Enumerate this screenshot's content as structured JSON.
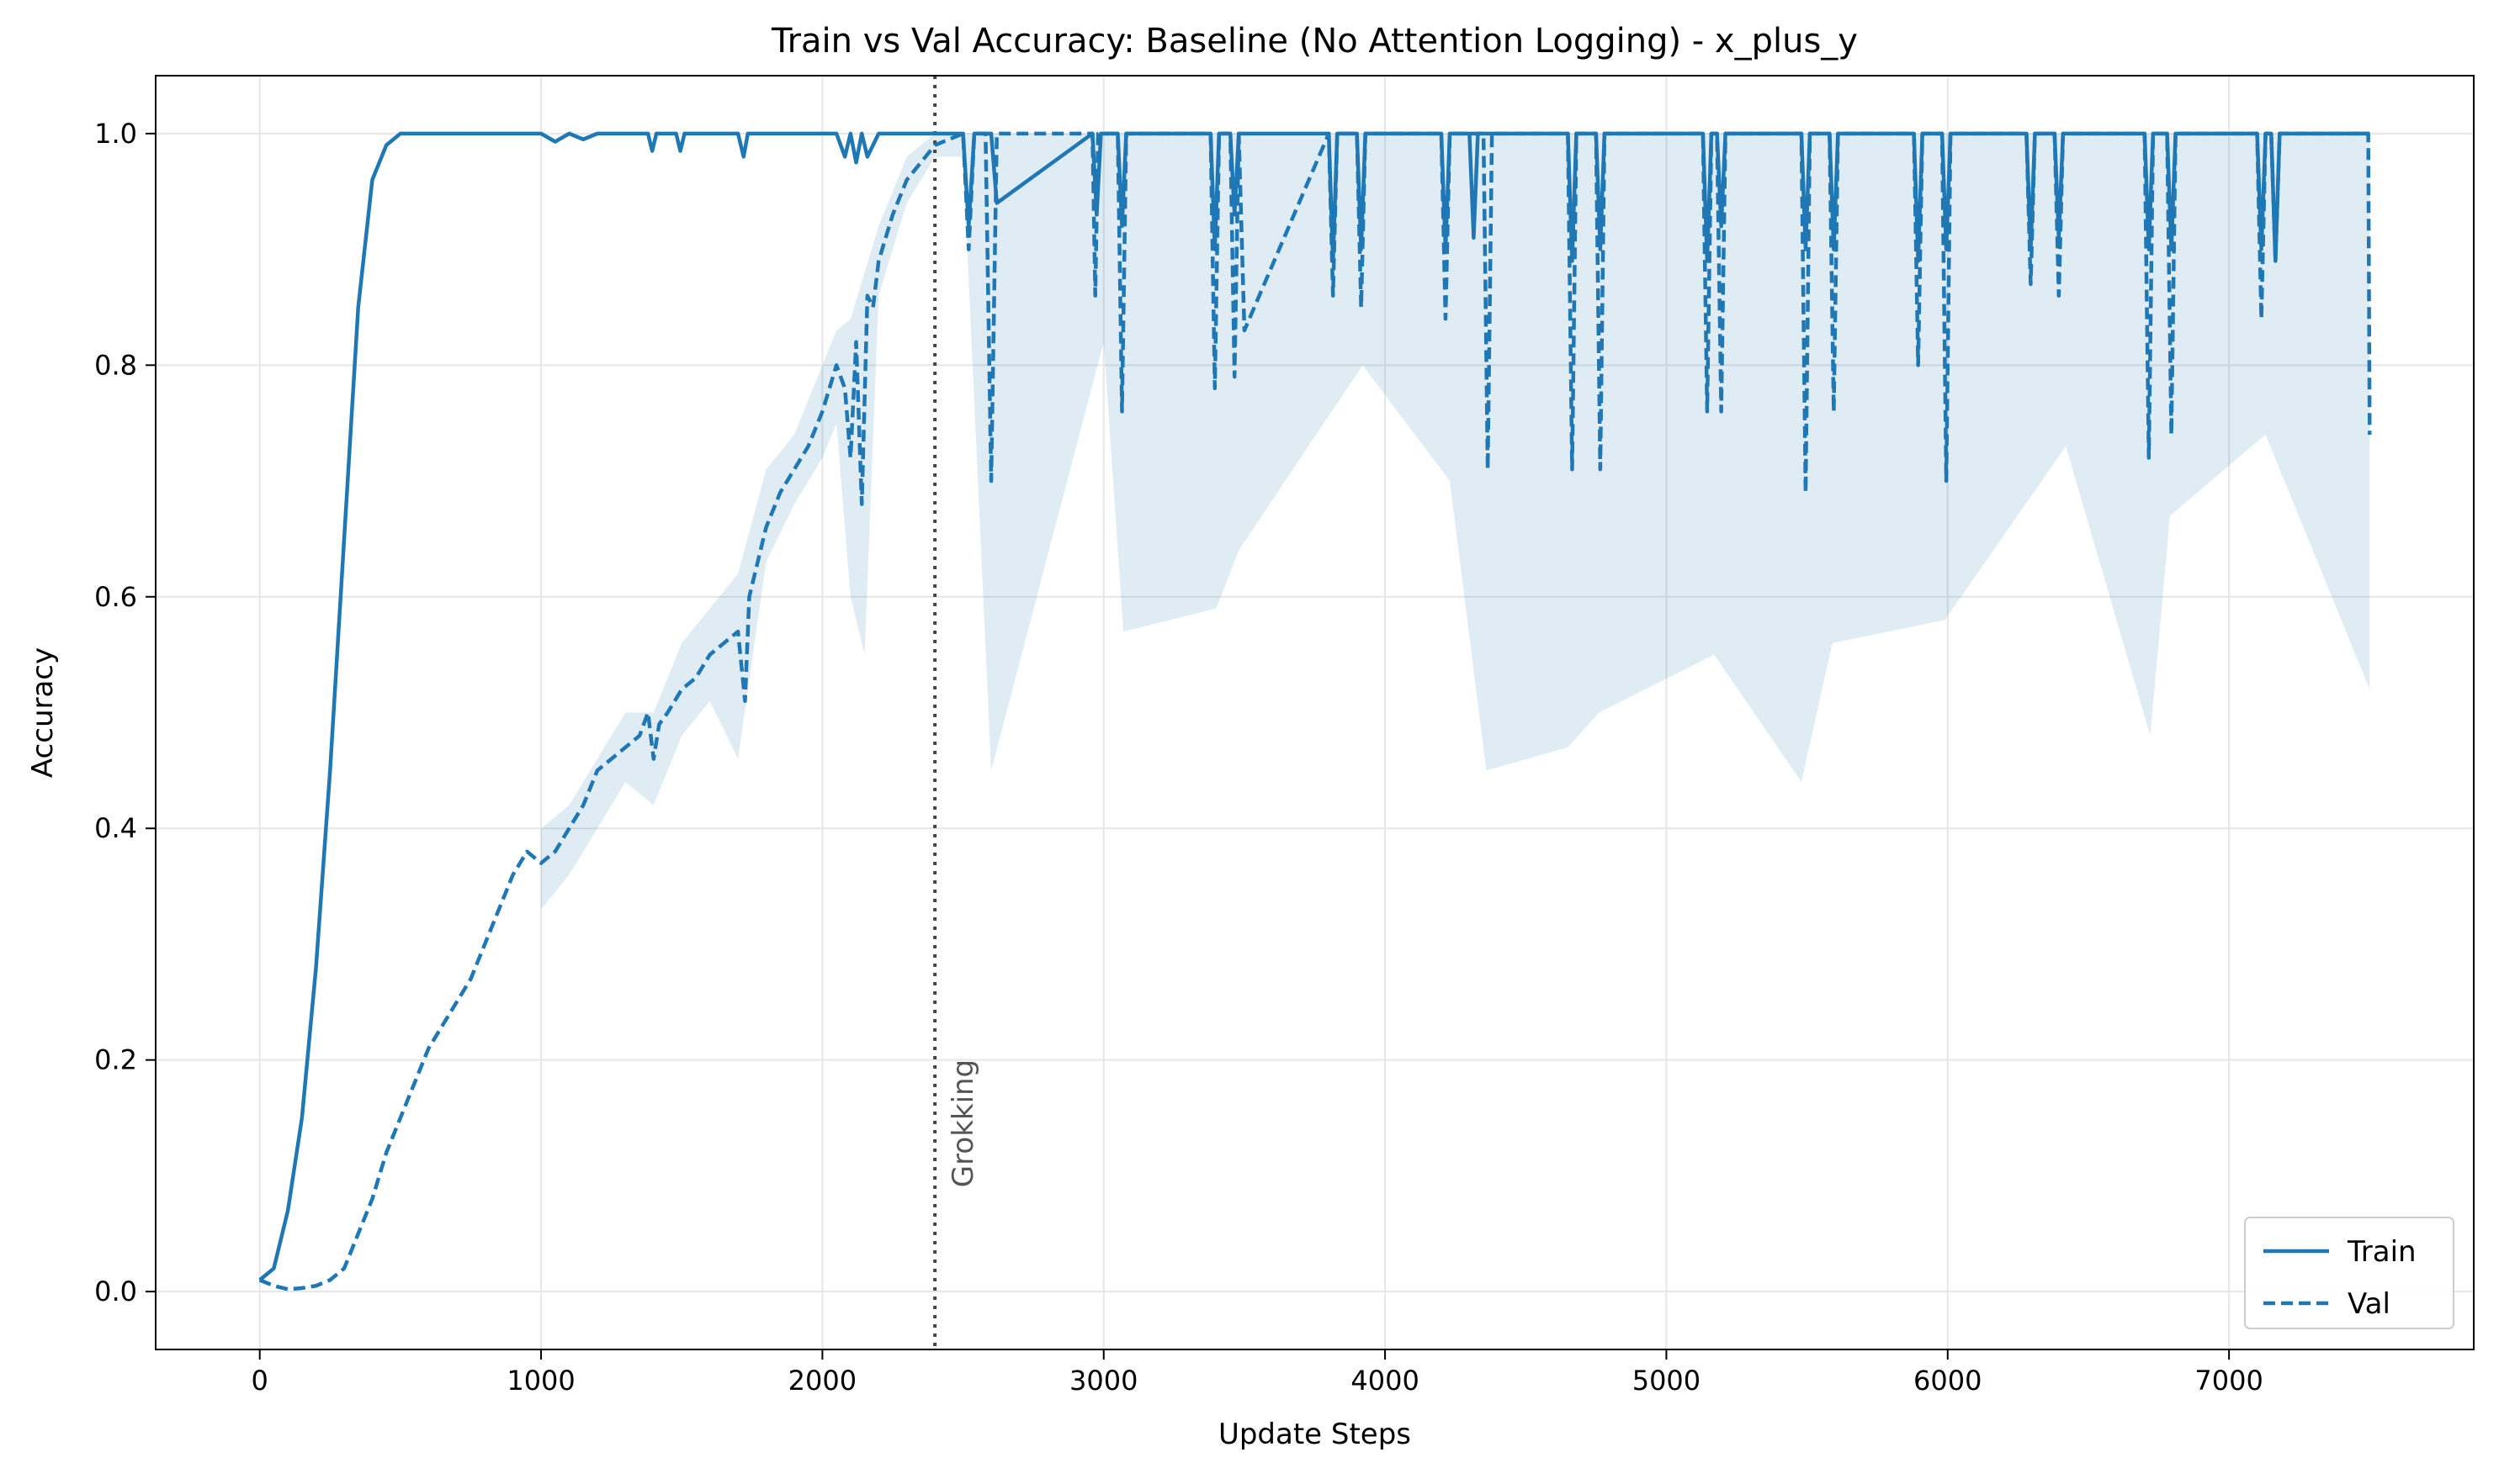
{
  "chart_data": {
    "type": "line",
    "title": "Train vs Val Accuracy: Baseline (No Attention Logging) - x_plus_y",
    "xlabel": "Update Steps",
    "ylabel": "Accuracy",
    "xlim": [
      -370,
      7870
    ],
    "ylim": [
      -0.05,
      1.05
    ],
    "xticks": [
      0,
      1000,
      2000,
      3000,
      4000,
      5000,
      6000,
      7000
    ],
    "xtick_labels": [
      "0",
      "1000",
      "2000",
      "3000",
      "4000",
      "5000",
      "6000",
      "7000"
    ],
    "yticks": [
      0.0,
      0.2,
      0.4,
      0.6,
      0.8,
      1.0
    ],
    "ytick_labels": [
      "0.0",
      "0.2",
      "0.4",
      "0.6",
      "0.8",
      "1.0"
    ],
    "grid": true,
    "legend_position": "lower-right",
    "colors": {
      "series": "#1f77b4",
      "band": "#1f77b4",
      "vline": "#444444",
      "grid": "#e6e6e6"
    },
    "annotation": {
      "text": "Grokking",
      "x": 2400
    },
    "series": [
      {
        "name": "Train",
        "style": "solid",
        "x": [
          0,
          50,
          100,
          150,
          200,
          250,
          300,
          350,
          400,
          450,
          500,
          550,
          600,
          700,
          800,
          900,
          1000,
          1050,
          1100,
          1150,
          1200,
          1300,
          1380,
          1395,
          1410,
          1480,
          1495,
          1510,
          1700,
          1720,
          1735,
          1760,
          1800,
          2050,
          2080,
          2100,
          2120,
          2140,
          2160,
          2200,
          2400,
          2500,
          2520,
          2540,
          2600,
          2620,
          2960,
          2975,
          2990,
          3050,
          3065,
          3080,
          3380,
          3395,
          3410,
          3450,
          3465,
          3480,
          3800,
          3815,
          3830,
          3900,
          3915,
          3930,
          4200,
          4215,
          4230,
          4300,
          4315,
          4330,
          4650,
          4665,
          4680,
          4750,
          4765,
          4780,
          5130,
          5145,
          5160,
          5180,
          5195,
          5210,
          5480,
          5495,
          5510,
          5580,
          5595,
          5610,
          5880,
          5895,
          5910,
          5980,
          5995,
          6010,
          6280,
          6295,
          6310,
          6380,
          6395,
          6410,
          6700,
          6715,
          6730,
          6780,
          6795,
          6810,
          7100,
          7115,
          7130,
          7150,
          7165,
          7180,
          7500
        ],
        "values": [
          0.01,
          0.02,
          0.07,
          0.15,
          0.28,
          0.45,
          0.65,
          0.85,
          0.96,
          0.99,
          1.0,
          1.0,
          1.0,
          1.0,
          1.0,
          1.0,
          1.0,
          0.993,
          1.0,
          0.995,
          1.0,
          1.0,
          1.0,
          0.985,
          1.0,
          1.0,
          0.985,
          1.0,
          1.0,
          0.98,
          1.0,
          1.0,
          1.0,
          1.0,
          0.98,
          1.0,
          0.975,
          1.0,
          0.98,
          1.0,
          1.0,
          1.0,
          0.92,
          1.0,
          1.0,
          0.94,
          1.0,
          0.93,
          1.0,
          1.0,
          0.92,
          1.0,
          1.0,
          0.9,
          1.0,
          1.0,
          0.93,
          1.0,
          1.0,
          0.89,
          1.0,
          1.0,
          0.9,
          1.0,
          1.0,
          0.9,
          1.0,
          1.0,
          0.91,
          1.0,
          1.0,
          0.89,
          1.0,
          1.0,
          0.9,
          1.0,
          1.0,
          0.89,
          1.0,
          1.0,
          0.92,
          1.0,
          1.0,
          0.9,
          1.0,
          1.0,
          0.9,
          1.0,
          1.0,
          0.89,
          1.0,
          1.0,
          0.9,
          1.0,
          1.0,
          0.9,
          1.0,
          1.0,
          0.91,
          1.0,
          1.0,
          0.9,
          1.0,
          1.0,
          0.9,
          1.0,
          1.0,
          0.9,
          1.0,
          1.0,
          0.89,
          1.0,
          1.0
        ]
      },
      {
        "name": "Val",
        "style": "dashed",
        "x": [
          0,
          50,
          100,
          150,
          200,
          250,
          300,
          350,
          400,
          450,
          500,
          550,
          600,
          650,
          700,
          750,
          800,
          850,
          900,
          950,
          1000,
          1050,
          1100,
          1150,
          1200,
          1250,
          1300,
          1350,
          1380,
          1400,
          1420,
          1450,
          1500,
          1550,
          1600,
          1650,
          1700,
          1725,
          1740,
          1760,
          1800,
          1850,
          1900,
          1950,
          2000,
          2050,
          2080,
          2100,
          2120,
          2140,
          2160,
          2180,
          2200,
          2250,
          2300,
          2350,
          2400,
          2450,
          2500,
          2520,
          2540,
          2580,
          2600,
          2620,
          2650,
          2960,
          2970,
          2980,
          2990,
          3050,
          3065,
          3080,
          3380,
          3395,
          3410,
          3450,
          3465,
          3480,
          3500,
          3800,
          3815,
          3830,
          3900,
          3915,
          3930,
          4200,
          4215,
          4230,
          4300,
          4350,
          4365,
          4380,
          4650,
          4665,
          4680,
          4750,
          4765,
          4780,
          5130,
          5145,
          5160,
          5180,
          5195,
          5210,
          5480,
          5495,
          5510,
          5580,
          5595,
          5610,
          5880,
          5895,
          5910,
          5980,
          5995,
          6010,
          6280,
          6295,
          6310,
          6380,
          6395,
          6410,
          6700,
          6715,
          6730,
          6780,
          6795,
          6810,
          7100,
          7115,
          7130,
          7150,
          7165,
          7180,
          7480,
          7495,
          7500
        ],
        "values": [
          0.01,
          0.005,
          0.002,
          0.003,
          0.005,
          0.01,
          0.02,
          0.05,
          0.08,
          0.12,
          0.15,
          0.18,
          0.21,
          0.23,
          0.25,
          0.27,
          0.3,
          0.33,
          0.36,
          0.38,
          0.37,
          0.38,
          0.4,
          0.42,
          0.45,
          0.46,
          0.47,
          0.48,
          0.5,
          0.46,
          0.49,
          0.5,
          0.52,
          0.53,
          0.55,
          0.56,
          0.57,
          0.51,
          0.6,
          0.62,
          0.66,
          0.69,
          0.71,
          0.73,
          0.76,
          0.8,
          0.78,
          0.72,
          0.82,
          0.68,
          0.86,
          0.85,
          0.89,
          0.93,
          0.96,
          0.975,
          0.99,
          0.995,
          1.0,
          0.9,
          1.0,
          1.0,
          0.7,
          1.0,
          1.0,
          1.0,
          0.86,
          1.0,
          1.0,
          1.0,
          0.76,
          1.0,
          1.0,
          0.78,
          1.0,
          1.0,
          0.79,
          1.0,
          0.83,
          1.0,
          0.86,
          1.0,
          1.0,
          0.85,
          1.0,
          1.0,
          0.84,
          1.0,
          1.0,
          1.0,
          0.71,
          1.0,
          1.0,
          0.71,
          1.0,
          1.0,
          0.71,
          1.0,
          1.0,
          0.76,
          1.0,
          1.0,
          0.76,
          1.0,
          1.0,
          0.69,
          1.0,
          1.0,
          0.76,
          1.0,
          1.0,
          0.8,
          1.0,
          1.0,
          0.7,
          1.0,
          1.0,
          0.87,
          1.0,
          1.0,
          0.86,
          1.0,
          1.0,
          0.72,
          1.0,
          1.0,
          0.74,
          1.0,
          1.0,
          0.84,
          1.0,
          1.0,
          0.89,
          1.0,
          1.0,
          1.0,
          0.74
        ]
      }
    ],
    "band": {
      "series": "Val",
      "x": [
        1000,
        1100,
        1200,
        1300,
        1400,
        1500,
        1600,
        1700,
        1800,
        1900,
        2000,
        2050,
        2100,
        2150,
        2200,
        2300,
        2400,
        2500,
        2600,
        3000,
        3070,
        3400,
        3480,
        3920,
        4230,
        4360,
        4650,
        4760,
        5170,
        5480,
        5590,
        5990,
        6420,
        6720,
        6790,
        7130,
        7500
      ],
      "lower": [
        0.33,
        0.36,
        0.4,
        0.44,
        0.42,
        0.48,
        0.51,
        0.46,
        0.63,
        0.68,
        0.72,
        0.75,
        0.6,
        0.55,
        0.86,
        0.94,
        0.98,
        0.98,
        0.45,
        0.82,
        0.57,
        0.59,
        0.64,
        0.8,
        0.7,
        0.45,
        0.47,
        0.5,
        0.55,
        0.44,
        0.56,
        0.58,
        0.73,
        0.48,
        0.67,
        0.74,
        0.52
      ],
      "upper": [
        0.4,
        0.42,
        0.46,
        0.5,
        0.5,
        0.56,
        0.59,
        0.62,
        0.71,
        0.74,
        0.8,
        0.83,
        0.84,
        0.88,
        0.92,
        0.98,
        1.0,
        1.0,
        1.0,
        1.0,
        1.0,
        1.0,
        1.0,
        1.0,
        1.0,
        1.0,
        1.0,
        1.0,
        1.0,
        1.0,
        1.0,
        1.0,
        1.0,
        1.0,
        1.0,
        1.0,
        1.0
      ]
    }
  }
}
